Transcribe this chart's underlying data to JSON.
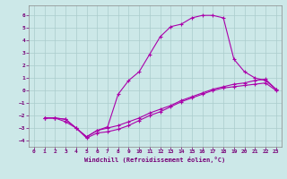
{
  "title": "",
  "xlabel": "Windchill (Refroidissement éolien,°C)",
  "ylabel": "",
  "background_color": "#cce8e8",
  "grid_color": "#aacccc",
  "line_color": "#aa00aa",
  "xlim": [
    -0.5,
    23.5
  ],
  "ylim": [
    -4.5,
    6.8
  ],
  "xticks": [
    0,
    1,
    2,
    3,
    4,
    5,
    6,
    7,
    8,
    9,
    10,
    11,
    12,
    13,
    14,
    15,
    16,
    17,
    18,
    19,
    20,
    21,
    22,
    23
  ],
  "yticks": [
    -4,
    -3,
    -2,
    -1,
    0,
    1,
    2,
    3,
    4,
    5,
    6
  ],
  "line1_x": [
    1,
    2,
    3,
    4,
    5,
    6,
    7,
    8,
    9,
    10,
    11,
    12,
    13,
    14,
    15,
    16,
    17,
    18,
    19,
    20,
    21,
    22,
    23
  ],
  "line1_y": [
    -2.2,
    -2.2,
    -2.3,
    -3.0,
    -3.7,
    -3.2,
    -2.9,
    -0.3,
    0.8,
    1.5,
    2.9,
    4.3,
    5.1,
    5.3,
    5.8,
    6.0,
    6.0,
    5.8,
    2.5,
    1.5,
    1.0,
    0.8,
    0.1
  ],
  "line2_x": [
    1,
    2,
    3,
    4,
    5,
    6,
    7,
    8,
    9,
    10,
    11,
    12,
    13,
    14,
    15,
    16,
    17,
    18,
    19,
    20,
    21,
    22,
    23
  ],
  "line2_y": [
    -2.2,
    -2.2,
    -2.3,
    -3.0,
    -3.7,
    -3.2,
    -3.0,
    -2.8,
    -2.5,
    -2.2,
    -1.8,
    -1.5,
    -1.2,
    -0.8,
    -0.5,
    -0.2,
    0.1,
    0.3,
    0.5,
    0.6,
    0.8,
    0.9,
    0.1
  ],
  "line3_x": [
    1,
    2,
    3,
    4,
    5,
    6,
    7,
    8,
    9,
    10,
    11,
    12,
    13,
    14,
    15,
    16,
    17,
    18,
    19,
    20,
    21,
    22,
    23
  ],
  "line3_y": [
    -2.2,
    -2.2,
    -2.5,
    -3.0,
    -3.8,
    -3.4,
    -3.3,
    -3.1,
    -2.8,
    -2.4,
    -2.0,
    -1.7,
    -1.3,
    -0.9,
    -0.6,
    -0.3,
    0.0,
    0.2,
    0.3,
    0.4,
    0.5,
    0.6,
    0.0
  ]
}
